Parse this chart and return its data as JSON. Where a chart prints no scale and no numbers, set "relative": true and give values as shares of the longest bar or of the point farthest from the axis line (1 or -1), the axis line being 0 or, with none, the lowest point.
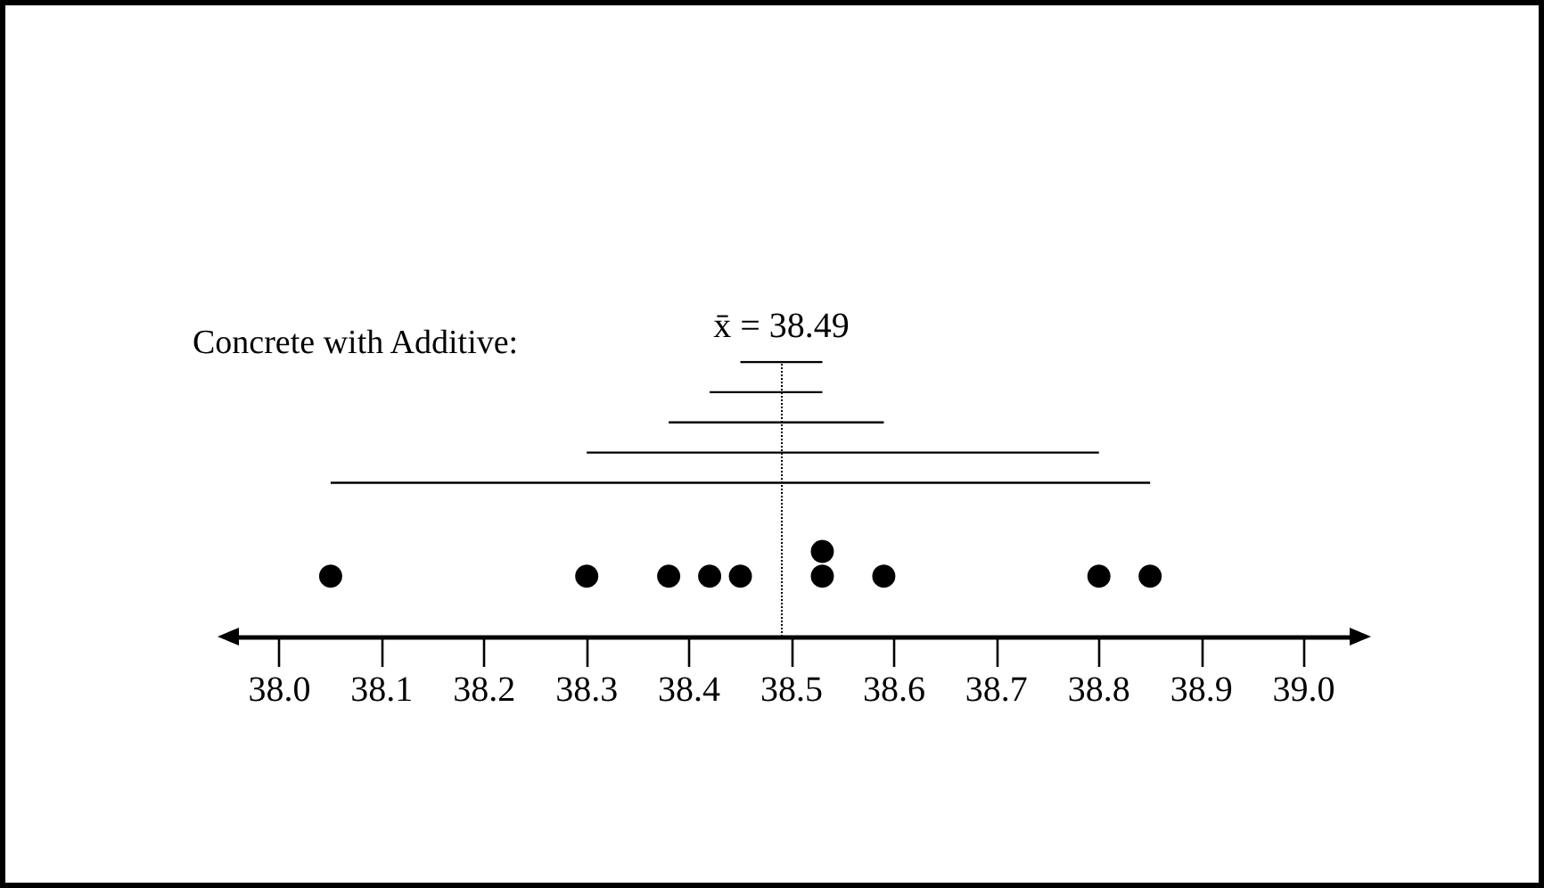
{
  "chart_data": {
    "type": "scatter",
    "title": "Concrete with Additive:",
    "relative": true,
    "xlim": [
      37.95,
      39.05
    ],
    "xticks": [
      {
        "value": 38,
        "label": "38.0"
      },
      38.1,
      38.2,
      38.3,
      38.4,
      38.5,
      38.6,
      38.7,
      38.8,
      38.9,
      {
        "value": 39,
        "label": "39.0"
      }
    ],
    "tick_labels": "x",
    "grid": false,
    "series": [
      {
        "type": "scatter",
        "color": "#000000",
        "marker": "circle",
        "x": [
          38.05,
          38.3,
          38.38,
          38.42,
          38.45,
          38.53,
          38.53,
          38.59,
          38.8,
          38.85
        ],
        "values": [
          0.22,
          0.22,
          0.22,
          0.22,
          0.22,
          0.22,
          0.31,
          0.22,
          0.22,
          0.22
        ]
      },
      {
        "type": "line",
        "color": "#000000",
        "marker": "none",
        "x": [
          38.45,
          38.53
        ],
        "values": [
          1,
          1
        ]
      },
      {
        "type": "line",
        "color": "#000000",
        "marker": "none",
        "x": [
          38.42,
          38.53
        ],
        "values": [
          0.89,
          0.89
        ]
      },
      {
        "type": "line",
        "color": "#000000",
        "marker": "none",
        "x": [
          38.38,
          38.59
        ],
        "values": [
          0.78,
          0.78
        ]
      },
      {
        "type": "line",
        "color": "#000000",
        "marker": "none",
        "x": [
          38.3,
          38.8
        ],
        "values": [
          0.67,
          0.67
        ]
      },
      {
        "type": "line",
        "color": "#000000",
        "marker": "none",
        "x": [
          38.05,
          38.85
        ],
        "values": [
          0.56,
          0.56
        ]
      }
    ],
    "ref_lines": [
      {
        "axis": "x",
        "value": 38.49,
        "label": "x̄ = 38.49",
        "color": "#000000",
        "line_style": "dotted"
      }
    ]
  }
}
